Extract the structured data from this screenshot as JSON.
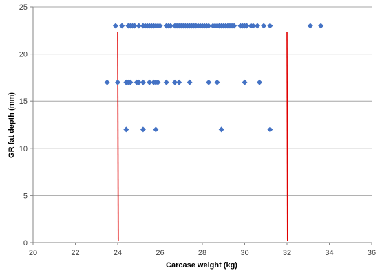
{
  "chart_data": {
    "type": "scatter",
    "title": "",
    "xlabel": "Carcase weight (kg)",
    "ylabel": "GR fat depth (mm)",
    "xlim": [
      20,
      36
    ],
    "ylim": [
      0,
      25
    ],
    "x_ticks": [
      20,
      22,
      24,
      26,
      28,
      30,
      32,
      34,
      36
    ],
    "y_ticks": [
      0,
      5,
      10,
      15,
      20,
      25
    ],
    "grid": "horizontal",
    "legend": "none",
    "colors": {
      "points": "#4472C4",
      "reference_lines": "#E00000",
      "gridlines": "#A6A6A6",
      "axes": "#868686"
    },
    "series": [
      {
        "marker": "diamond",
        "points": [
          [
            23.9,
            23
          ],
          [
            24.2,
            23
          ],
          [
            24.5,
            23
          ],
          [
            24.6,
            23
          ],
          [
            24.7,
            23
          ],
          [
            24.8,
            23
          ],
          [
            25.0,
            23
          ],
          [
            25.2,
            23
          ],
          [
            25.3,
            23
          ],
          [
            25.4,
            23
          ],
          [
            25.5,
            23
          ],
          [
            25.6,
            23
          ],
          [
            25.7,
            23
          ],
          [
            25.8,
            23
          ],
          [
            25.9,
            23
          ],
          [
            26.0,
            23
          ],
          [
            26.3,
            23
          ],
          [
            26.4,
            23
          ],
          [
            26.5,
            23
          ],
          [
            26.7,
            23
          ],
          [
            26.8,
            23
          ],
          [
            26.9,
            23
          ],
          [
            27.0,
            23
          ],
          [
            27.1,
            23
          ],
          [
            27.2,
            23
          ],
          [
            27.3,
            23
          ],
          [
            27.4,
            23
          ],
          [
            27.5,
            23
          ],
          [
            27.6,
            23
          ],
          [
            27.7,
            23
          ],
          [
            27.8,
            23
          ],
          [
            27.9,
            23
          ],
          [
            28.0,
            23
          ],
          [
            28.1,
            23
          ],
          [
            28.2,
            23
          ],
          [
            28.3,
            23
          ],
          [
            28.5,
            23
          ],
          [
            28.6,
            23
          ],
          [
            28.7,
            23
          ],
          [
            28.8,
            23
          ],
          [
            28.9,
            23
          ],
          [
            29.0,
            23
          ],
          [
            29.1,
            23
          ],
          [
            29.2,
            23
          ],
          [
            29.3,
            23
          ],
          [
            29.4,
            23
          ],
          [
            29.5,
            23
          ],
          [
            29.8,
            23
          ],
          [
            29.9,
            23
          ],
          [
            30.0,
            23
          ],
          [
            30.1,
            23
          ],
          [
            30.3,
            23
          ],
          [
            30.4,
            23
          ],
          [
            30.6,
            23
          ],
          [
            30.9,
            23
          ],
          [
            31.2,
            23
          ],
          [
            33.1,
            23
          ],
          [
            33.6,
            23
          ],
          [
            23.5,
            17
          ],
          [
            24.0,
            17
          ],
          [
            24.4,
            17
          ],
          [
            24.5,
            17
          ],
          [
            24.6,
            17
          ],
          [
            24.9,
            17
          ],
          [
            25.0,
            17
          ],
          [
            25.2,
            17
          ],
          [
            25.5,
            17
          ],
          [
            25.7,
            17
          ],
          [
            25.8,
            17
          ],
          [
            25.9,
            17
          ],
          [
            26.3,
            17
          ],
          [
            26.7,
            17
          ],
          [
            26.9,
            17
          ],
          [
            27.4,
            17
          ],
          [
            28.3,
            17
          ],
          [
            28.7,
            17
          ],
          [
            30.0,
            17
          ],
          [
            30.7,
            17
          ],
          [
            24.4,
            12
          ],
          [
            25.2,
            12
          ],
          [
            25.8,
            12
          ],
          [
            28.9,
            12
          ],
          [
            31.2,
            12
          ]
        ]
      }
    ],
    "reference_lines": [
      {
        "x": 24
      },
      {
        "x": 32
      }
    ]
  }
}
